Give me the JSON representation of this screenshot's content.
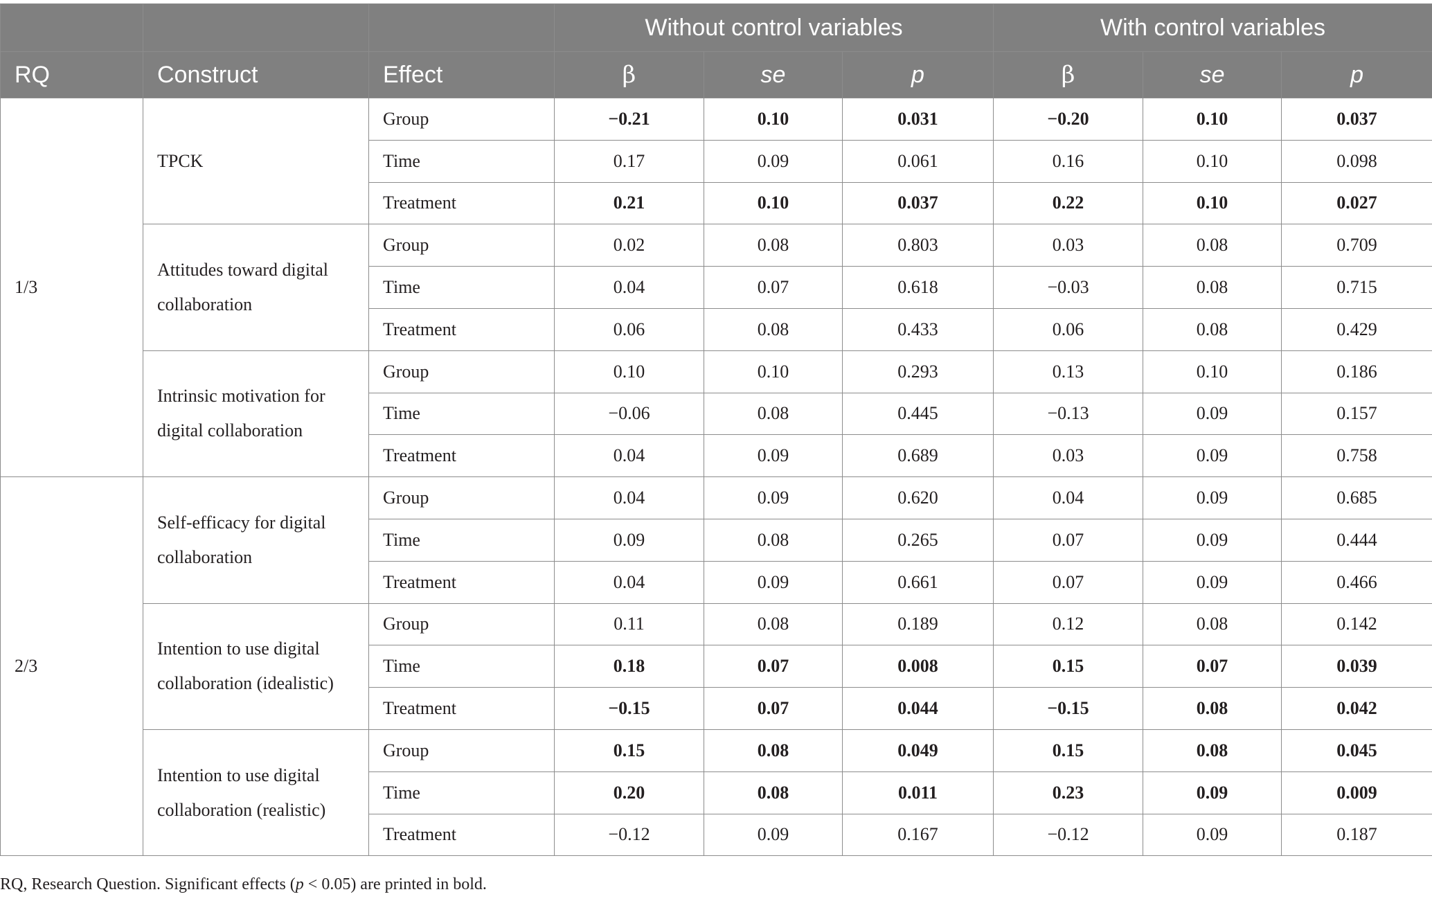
{
  "header": {
    "group_without": "Without control variables",
    "group_with": "With control variables",
    "col_rq": "RQ",
    "col_construct": "Construct",
    "col_effect": "Effect",
    "col_beta": "β",
    "col_se": "se",
    "col_p": "p"
  },
  "rq_groups": [
    {
      "rq": "1/3",
      "constructs": [
        {
          "name": "TPCK",
          "rows": [
            {
              "effect": "Group",
              "wo_beta": "−0.21",
              "wo_se": "0.10",
              "wo_p": "0.031",
              "w_beta": "−0.20",
              "w_se": "0.10",
              "w_p": "0.037",
              "wo_sig": true,
              "w_sig": true
            },
            {
              "effect": "Time",
              "wo_beta": "0.17",
              "wo_se": "0.09",
              "wo_p": "0.061",
              "w_beta": "0.16",
              "w_se": "0.10",
              "w_p": "0.098",
              "wo_sig": false,
              "w_sig": false
            },
            {
              "effect": "Treatment",
              "wo_beta": "0.21",
              "wo_se": "0.10",
              "wo_p": "0.037",
              "w_beta": "0.22",
              "w_se": "0.10",
              "w_p": "0.027",
              "wo_sig": true,
              "w_sig": true
            }
          ]
        },
        {
          "name": "Attitudes toward digital collaboration",
          "rows": [
            {
              "effect": "Group",
              "wo_beta": "0.02",
              "wo_se": "0.08",
              "wo_p": "0.803",
              "w_beta": "0.03",
              "w_se": "0.08",
              "w_p": "0.709",
              "wo_sig": false,
              "w_sig": false
            },
            {
              "effect": "Time",
              "wo_beta": "0.04",
              "wo_se": "0.07",
              "wo_p": "0.618",
              "w_beta": "−0.03",
              "w_se": "0.08",
              "w_p": "0.715",
              "wo_sig": false,
              "w_sig": false
            },
            {
              "effect": "Treatment",
              "wo_beta": "0.06",
              "wo_se": "0.08",
              "wo_p": "0.433",
              "w_beta": "0.06",
              "w_se": "0.08",
              "w_p": "0.429",
              "wo_sig": false,
              "w_sig": false
            }
          ]
        },
        {
          "name": "Intrinsic motivation for digital collaboration",
          "rows": [
            {
              "effect": "Group",
              "wo_beta": "0.10",
              "wo_se": "0.10",
              "wo_p": "0.293",
              "w_beta": "0.13",
              "w_se": "0.10",
              "w_p": "0.186",
              "wo_sig": false,
              "w_sig": false
            },
            {
              "effect": "Time",
              "wo_beta": "−0.06",
              "wo_se": "0.08",
              "wo_p": "0.445",
              "w_beta": "−0.13",
              "w_se": "0.09",
              "w_p": "0.157",
              "wo_sig": false,
              "w_sig": false
            },
            {
              "effect": "Treatment",
              "wo_beta": "0.04",
              "wo_se": "0.09",
              "wo_p": "0.689",
              "w_beta": "0.03",
              "w_se": "0.09",
              "w_p": "0.758",
              "wo_sig": false,
              "w_sig": false
            }
          ]
        }
      ]
    },
    {
      "rq": "2/3",
      "constructs": [
        {
          "name": "Self-efficacy for digital collaboration",
          "rows": [
            {
              "effect": "Group",
              "wo_beta": "0.04",
              "wo_se": "0.09",
              "wo_p": "0.620",
              "w_beta": "0.04",
              "w_se": "0.09",
              "w_p": "0.685",
              "wo_sig": false,
              "w_sig": false
            },
            {
              "effect": "Time",
              "wo_beta": "0.09",
              "wo_se": "0.08",
              "wo_p": "0.265",
              "w_beta": "0.07",
              "w_se": "0.09",
              "w_p": "0.444",
              "wo_sig": false,
              "w_sig": false
            },
            {
              "effect": "Treatment",
              "wo_beta": "0.04",
              "wo_se": "0.09",
              "wo_p": "0.661",
              "w_beta": "0.07",
              "w_se": "0.09",
              "w_p": "0.466",
              "wo_sig": false,
              "w_sig": false
            }
          ]
        },
        {
          "name": "Intention to use digital collaboration (idealistic)",
          "rows": [
            {
              "effect": "Group",
              "wo_beta": "0.11",
              "wo_se": "0.08",
              "wo_p": "0.189",
              "w_beta": "0.12",
              "w_se": "0.08",
              "w_p": "0.142",
              "wo_sig": false,
              "w_sig": false
            },
            {
              "effect": "Time",
              "wo_beta": "0.18",
              "wo_se": "0.07",
              "wo_p": "0.008",
              "w_beta": "0.15",
              "w_se": "0.07",
              "w_p": "0.039",
              "wo_sig": true,
              "w_sig": true
            },
            {
              "effect": "Treatment",
              "wo_beta": "−0.15",
              "wo_se": "0.07",
              "wo_p": "0.044",
              "w_beta": "−0.15",
              "w_se": "0.08",
              "w_p": "0.042",
              "wo_sig": true,
              "w_sig": true
            }
          ]
        },
        {
          "name": "Intention to use digital collaboration (realistic)",
          "rows": [
            {
              "effect": "Group",
              "wo_beta": "0.15",
              "wo_se": "0.08",
              "wo_p": "0.049",
              "w_beta": "0.15",
              "w_se": "0.08",
              "w_p": "0.045",
              "wo_sig": true,
              "w_sig": true
            },
            {
              "effect": "Time",
              "wo_beta": "0.20",
              "wo_se": "0.08",
              "wo_p": "0.011",
              "w_beta": "0.23",
              "w_se": "0.09",
              "w_p": "0.009",
              "wo_sig": true,
              "w_sig": true
            },
            {
              "effect": "Treatment",
              "wo_beta": "−0.12",
              "wo_se": "0.09",
              "wo_p": "0.167",
              "w_beta": "−0.12",
              "w_se": "0.09",
              "w_p": "0.187",
              "wo_sig": false,
              "w_sig": false
            }
          ]
        }
      ]
    }
  ],
  "footnote": {
    "before": "RQ, Research Question. Significant effects (",
    "p_symbol": "p",
    "middle": " < 0.05) are printed in bold."
  }
}
